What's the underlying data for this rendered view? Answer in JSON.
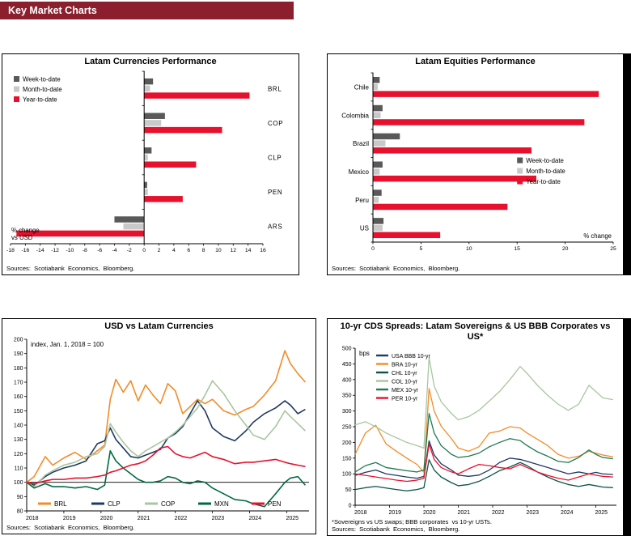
{
  "page": {
    "title": "Key Market Charts",
    "header_bg": "#8B1F2E"
  },
  "chart_data": [
    {
      "type": "bar",
      "orientation": "horizontal",
      "title": "Latam Currencies Performance",
      "categories": [
        "BRL",
        "COP",
        "CLP",
        "PEN",
        "ARS"
      ],
      "series": [
        {
          "name": "Week-to-date",
          "color": "#595959",
          "values": [
            1.2,
            2.8,
            1.0,
            0.4,
            -4.0
          ]
        },
        {
          "name": "Month-to-date",
          "color": "#C9C9C9",
          "values": [
            0.8,
            2.3,
            0.5,
            0.5,
            -2.8
          ]
        },
        {
          "name": "Year-to-date",
          "color": "#E8112D",
          "values": [
            14.2,
            10.5,
            7.0,
            5.2,
            -17.2
          ]
        }
      ],
      "xlim": [
        -18,
        16
      ],
      "xticks": [
        -18,
        -16,
        -14,
        -12,
        -10,
        -8,
        -6,
        -4,
        -2,
        0,
        2,
        4,
        6,
        8,
        10,
        12,
        14,
        16
      ],
      "xlabel_lines": [
        "% change",
        "vs USD"
      ],
      "source": "Sources:  Scotiabank  Economics,  Bloomberg."
    },
    {
      "type": "bar",
      "orientation": "horizontal",
      "title": "Latam Equities Performance",
      "categories": [
        "Chile",
        "Colombia",
        "Brazil",
        "Mexico",
        "Peru",
        "US"
      ],
      "series": [
        {
          "name": "Week-to-date",
          "color": "#595959",
          "values": [
            0.7,
            1.0,
            2.8,
            1.0,
            0.9,
            1.1
          ]
        },
        {
          "name": "Month-to-date",
          "color": "#C9C9C9",
          "values": [
            0.5,
            0.8,
            1.3,
            0.7,
            0.6,
            1.0
          ]
        },
        {
          "name": "Year-to-date",
          "color": "#E8112D",
          "values": [
            23.5,
            22.0,
            16.5,
            17.0,
            14.0,
            7.0
          ]
        }
      ],
      "xlim": [
        0,
        25
      ],
      "xticks": [
        0,
        5,
        10,
        15,
        20,
        25
      ],
      "xlabel": "% change",
      "source": "Sources:  Scotiabank  Economics,  Bloomberg."
    },
    {
      "type": "line",
      "title": "USD vs Latam Currencies",
      "annotation": "index, Jan. 1, 2018 = 100",
      "xlim": [
        2018,
        2025.6
      ],
      "ylim": [
        80,
        200
      ],
      "ytick": 10,
      "xticks": [
        2018,
        2019,
        2020,
        2021,
        2022,
        2023,
        2024,
        2025
      ],
      "refline": 100,
      "x": [
        2018.0,
        2018.2,
        2018.5,
        2018.7,
        2019.0,
        2019.3,
        2019.6,
        2019.9,
        2020.1,
        2020.25,
        2020.4,
        2020.6,
        2020.8,
        2021.0,
        2021.2,
        2021.4,
        2021.6,
        2021.8,
        2022.0,
        2022.2,
        2022.4,
        2022.6,
        2022.8,
        2023.0,
        2023.3,
        2023.6,
        2023.9,
        2024.1,
        2024.4,
        2024.7,
        2024.95,
        2025.1,
        2025.3,
        2025.5
      ],
      "series": [
        {
          "name": "BRL",
          "color": "#F28C28",
          "values": [
            100,
            104,
            118,
            112,
            117,
            121,
            116,
            122,
            126,
            158,
            172,
            163,
            171,
            157,
            168,
            161,
            155,
            169,
            164,
            148,
            153,
            158,
            155,
            158,
            150,
            147,
            151,
            153,
            161,
            171,
            192,
            183,
            176,
            170
          ]
        },
        {
          "name": "CLP",
          "color": "#1F3A63",
          "values": [
            100,
            98,
            104,
            107,
            110,
            112,
            115,
            127,
            129,
            138,
            130,
            124,
            118,
            117,
            119,
            121,
            123,
            131,
            134,
            139,
            148,
            157,
            150,
            138,
            132,
            129,
            136,
            142,
            148,
            152,
            157,
            154,
            148,
            151
          ]
        },
        {
          "name": "COP",
          "color": "#A8C6A1",
          "values": [
            100,
            97,
            105,
            108,
            112,
            114,
            118,
            120,
            125,
            141,
            135,
            128,
            122,
            118,
            122,
            125,
            128,
            131,
            135,
            140,
            146,
            152,
            161,
            171,
            162,
            150,
            140,
            133,
            130,
            139,
            150,
            146,
            141,
            136
          ]
        },
        {
          "name": "MXN",
          "color": "#00693F",
          "values": [
            100,
            96,
            99,
            97,
            97,
            96,
            97,
            95,
            98,
            122,
            115,
            110,
            106,
            102,
            100,
            100,
            101,
            104,
            103,
            100,
            99,
            101,
            100,
            96,
            92,
            88,
            87,
            85,
            83,
            92,
            100,
            103,
            104,
            98
          ]
        },
        {
          "name": "PEN",
          "color": "#E8112D",
          "values": [
            100,
            99,
            101,
            102,
            102,
            103,
            103,
            104,
            105,
            107,
            108,
            110,
            112,
            113,
            115,
            119,
            124,
            125,
            120,
            118,
            117,
            119,
            121,
            118,
            116,
            113,
            114,
            114,
            115,
            116,
            114,
            113,
            112,
            111
          ]
        }
      ],
      "source": "Sources:  Scotiabank  Economics,  Bloomberg."
    },
    {
      "type": "line",
      "title": "10-yr CDS Spreads: Latam Sovereigns & US BBB Corporates vs US*",
      "annotation": "bps",
      "xlim": [
        2018,
        2025.6
      ],
      "ylim": [
        0,
        500
      ],
      "ytick": 50,
      "xticks": [
        2018,
        2019,
        2020,
        2021,
        2022,
        2023,
        2024,
        2025
      ],
      "x": [
        2018.0,
        2018.3,
        2018.6,
        2018.9,
        2019.2,
        2019.5,
        2019.8,
        2020.0,
        2020.15,
        2020.3,
        2020.5,
        2020.8,
        2021.0,
        2021.3,
        2021.6,
        2021.9,
        2022.2,
        2022.5,
        2022.8,
        2023.0,
        2023.3,
        2023.6,
        2023.9,
        2024.2,
        2024.5,
        2024.8,
        2025.0,
        2025.2,
        2025.5
      ],
      "series": [
        {
          "name": "USA BBB 10-yr",
          "color": "#1F3A63",
          "values": [
            95,
            105,
            112,
            100,
            95,
            90,
            86,
            92,
            205,
            160,
            132,
            112,
            96,
            92,
            96,
            112,
            136,
            150,
            146,
            140,
            130,
            120,
            110,
            100,
            106,
            100,
            105,
            100,
            98
          ]
        },
        {
          "name": "BRA 10-yr",
          "color": "#F28C28",
          "values": [
            162,
            230,
            255,
            195,
            172,
            150,
            130,
            105,
            372,
            300,
            252,
            212,
            182,
            172,
            186,
            230,
            236,
            250,
            246,
            230,
            210,
            190,
            162,
            150,
            156,
            172,
            166,
            160,
            154
          ]
        },
        {
          "name": "CHL 10-yr",
          "color": "#0C5449",
          "values": [
            50,
            56,
            60,
            55,
            50,
            46,
            50,
            56,
            145,
            112,
            90,
            72,
            62,
            66,
            76,
            92,
            110,
            122,
            136,
            126,
            106,
            90,
            76,
            66,
            60,
            66,
            62,
            58,
            56
          ]
        },
        {
          "name": "COL 10-yr",
          "color": "#A8C6A1",
          "values": [
            256,
            266,
            250,
            230,
            215,
            200,
            190,
            182,
            470,
            380,
            330,
            292,
            272,
            282,
            302,
            332,
            362,
            400,
            442,
            420,
            382,
            350,
            322,
            302,
            322,
            382,
            362,
            342,
            336
          ]
        },
        {
          "name": "MEX 10-yr",
          "color": "#1E7A4F",
          "values": [
            106,
            126,
            136,
            120,
            115,
            110,
            106,
            112,
            292,
            230,
            190,
            162,
            152,
            156,
            166,
            186,
            200,
            212,
            206,
            190,
            170,
            156,
            140,
            136,
            152,
            176,
            162,
            152,
            148
          ]
        },
        {
          "name": "PER 10-yr",
          "color": "#E8112D",
          "values": [
            100,
            95,
            90,
            85,
            80,
            76,
            80,
            86,
            195,
            146,
            120,
            106,
            100,
            116,
            130,
            126,
            120,
            116,
            130,
            120,
            106,
            95,
            86,
            80,
            90,
            100,
            96,
            92,
            90
          ]
        }
      ],
      "footnote": "*Sovereigns vs US swaps; BBB corporates  vs 10-yr USTs.",
      "source": "Sources:  Scotiabank  Economics,  Bloomberg."
    }
  ]
}
